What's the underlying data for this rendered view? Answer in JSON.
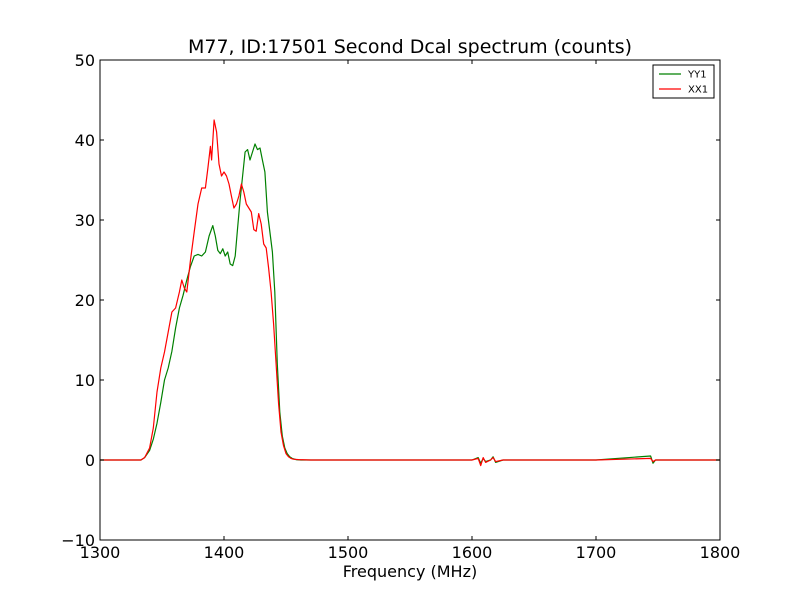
{
  "chart_data": {
    "type": "line",
    "title": "M77, ID:17501 Second Dcal spectrum (counts)",
    "xlabel": "Frequency (MHz)",
    "ylabel": "",
    "xlim": [
      1300,
      1800
    ],
    "ylim": [
      -10,
      50
    ],
    "x_ticks": [
      "1300",
      "1400",
      "1500",
      "1600",
      "1700",
      "1800"
    ],
    "y_ticks": [
      "−10",
      "0",
      "10",
      "20",
      "30",
      "40",
      "50"
    ],
    "grid": false,
    "legend_position": "top-right",
    "series": [
      {
        "name": "YY1",
        "color": "#008000",
        "x": [
          1300,
          1320,
          1333,
          1336,
          1340,
          1343,
          1346,
          1349,
          1352,
          1355,
          1358,
          1361,
          1364,
          1367,
          1370,
          1373,
          1376,
          1379,
          1382,
          1385,
          1388,
          1391,
          1393,
          1395,
          1397,
          1399,
          1401,
          1403,
          1405,
          1407,
          1409,
          1411,
          1413,
          1415,
          1417,
          1419,
          1421,
          1423,
          1425,
          1427,
          1429,
          1431,
          1433,
          1435,
          1437,
          1439,
          1441,
          1443,
          1445,
          1447,
          1449,
          1451,
          1453,
          1455,
          1458,
          1462,
          1470,
          1500,
          1550,
          1600,
          1605,
          1607,
          1609,
          1611,
          1615,
          1617,
          1619,
          1625,
          1700,
          1744,
          1746,
          1748,
          1800
        ],
        "y": [
          0,
          0,
          0,
          0.3,
          1.2,
          2.6,
          4.6,
          7.2,
          10.0,
          11.5,
          13.6,
          16.5,
          19.0,
          20.6,
          22.5,
          24.2,
          25.5,
          25.7,
          25.5,
          26.0,
          28.0,
          29.3,
          28.0,
          26.2,
          25.8,
          26.4,
          25.5,
          26.0,
          24.5,
          24.3,
          25.5,
          29.0,
          32.5,
          35.5,
          38.5,
          38.8,
          37.5,
          38.5,
          39.5,
          38.8,
          39.0,
          37.5,
          36.0,
          31.0,
          28.5,
          26.0,
          21.0,
          12.0,
          6.0,
          3.0,
          1.5,
          0.8,
          0.4,
          0.2,
          0.05,
          0,
          0,
          0,
          0,
          0,
          0.3,
          -0.4,
          0.2,
          -0.2,
          0,
          0.4,
          -0.3,
          0,
          0,
          0.5,
          -0.4,
          0,
          0
        ]
      },
      {
        "name": "XX1",
        "color": "#ff0000",
        "x": [
          1300,
          1320,
          1333,
          1336,
          1340,
          1343,
          1346,
          1349,
          1352,
          1355,
          1358,
          1361,
          1364,
          1366,
          1368,
          1370,
          1373,
          1376,
          1379,
          1382,
          1385,
          1387,
          1389,
          1390,
          1392,
          1394,
          1396,
          1398,
          1400,
          1402,
          1404,
          1406,
          1408,
          1410,
          1412,
          1414,
          1416,
          1418,
          1420,
          1422,
          1424,
          1426,
          1428,
          1430,
          1432,
          1434,
          1436,
          1438,
          1440,
          1442,
          1444,
          1446,
          1448,
          1450,
          1452,
          1454,
          1456,
          1460,
          1470,
          1500,
          1550,
          1600,
          1605,
          1607,
          1609,
          1611,
          1615,
          1617,
          1619,
          1625,
          1700,
          1744,
          1746,
          1748,
          1800
        ],
        "y": [
          0,
          0,
          0,
          0.3,
          1.5,
          4.0,
          8.5,
          11.5,
          13.5,
          16.0,
          18.5,
          19.0,
          21.0,
          22.5,
          21.5,
          21.0,
          25.0,
          28.5,
          32.0,
          34.0,
          34.0,
          36.5,
          39.2,
          37.5,
          42.5,
          41.0,
          37.0,
          35.5,
          36.0,
          35.5,
          34.5,
          33.0,
          31.5,
          32.0,
          33.0,
          34.5,
          33.5,
          32.0,
          31.5,
          31.0,
          28.8,
          28.6,
          30.8,
          29.5,
          27.0,
          26.5,
          24.0,
          21.0,
          17.0,
          12.0,
          7.0,
          3.5,
          1.8,
          0.8,
          0.4,
          0.2,
          0.1,
          0.05,
          0,
          0,
          0,
          0,
          0.2,
          -0.7,
          0.3,
          -0.3,
          0,
          0.3,
          -0.2,
          0,
          0,
          0.2,
          -0.2,
          0,
          0
        ]
      }
    ]
  }
}
